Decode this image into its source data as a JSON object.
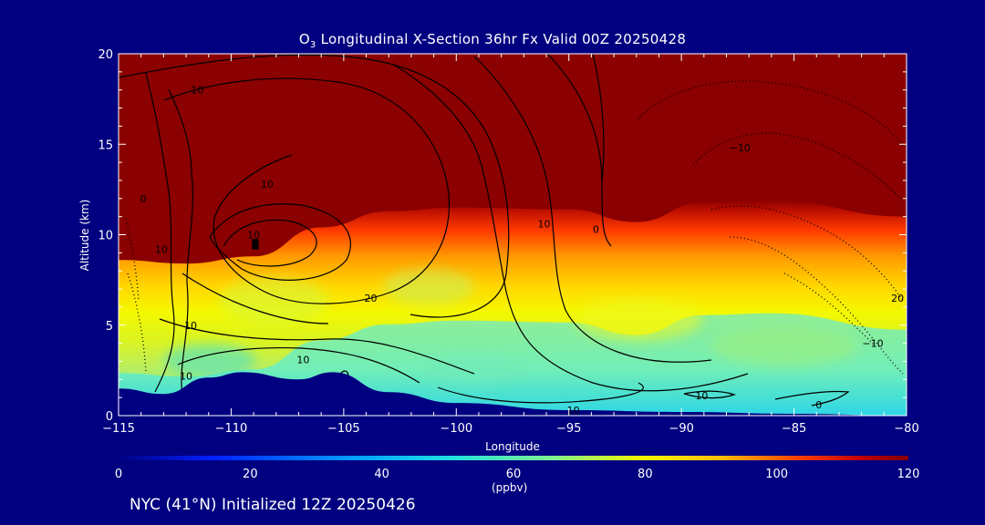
{
  "title": {
    "species": "O",
    "subscript": "3",
    "rest": " Longitudinal X-Section 36hr  Fx Valid 00Z 20250428"
  },
  "footer": "NYC (41°N) Initialized 12Z 20250426",
  "chart_data": {
    "type": "heatmap",
    "title": "O3 Longitudinal X-Section 36hr  Fx Valid 00Z 20250428",
    "xlabel": "Longitude",
    "ylabel": "Altitude (km)",
    "xlim": [
      -115,
      -80
    ],
    "ylim": [
      0,
      20
    ],
    "x_ticks": [
      -115,
      -110,
      -105,
      -100,
      -95,
      -90,
      -85,
      -80
    ],
    "x_tick_labels": [
      "−115",
      "−110",
      "−105",
      "−100",
      "−95",
      "−90",
      "−85",
      "−80"
    ],
    "y_ticks": [
      0,
      5,
      10,
      15,
      20
    ],
    "colorbar": {
      "min": 0,
      "max": 120,
      "ticks": [
        0,
        20,
        40,
        60,
        80,
        100,
        120
      ],
      "unit": "(ppbv)"
    },
    "tropopause_height_km": [
      {
        "lon": -115,
        "alt": 8.4
      },
      {
        "lon": -112,
        "alt": 8.2
      },
      {
        "lon": -109,
        "alt": 8.6
      },
      {
        "lon": -106,
        "alt": 10.2
      },
      {
        "lon": -103,
        "alt": 11.1
      },
      {
        "lon": -100,
        "alt": 11.3
      },
      {
        "lon": -95,
        "alt": 11.2
      },
      {
        "lon": -92,
        "alt": 10.5
      },
      {
        "lon": -89,
        "alt": 11.6
      },
      {
        "lon": -86,
        "alt": 11.7
      },
      {
        "lon": -80,
        "alt": 10.8
      }
    ],
    "terrain_height_km": [
      {
        "lon": -115,
        "alt": 1.5
      },
      {
        "lon": -113,
        "alt": 1.2
      },
      {
        "lon": -111,
        "alt": 2.1
      },
      {
        "lon": -109.5,
        "alt": 2.4
      },
      {
        "lon": -107,
        "alt": 2.0
      },
      {
        "lon": -105.5,
        "alt": 2.4
      },
      {
        "lon": -103,
        "alt": 1.3
      },
      {
        "lon": -100,
        "alt": 0.7
      },
      {
        "lon": -95,
        "alt": 0.3
      },
      {
        "lon": -90,
        "alt": 0.2
      },
      {
        "lon": -85,
        "alt": 0.1
      },
      {
        "lon": -80,
        "alt": 0.0
      }
    ],
    "contour_labels": [
      {
        "text": "10",
        "lon": -111.5,
        "alt": 18.0
      },
      {
        "text": "0",
        "lon": -113.9,
        "alt": 12.0
      },
      {
        "text": "10",
        "lon": -113.1,
        "alt": 9.2
      },
      {
        "text": "10",
        "lon": -108.4,
        "alt": 12.8
      },
      {
        "text": "10",
        "lon": -109.0,
        "alt": 10.0
      },
      {
        "text": "20",
        "lon": -103.8,
        "alt": 6.5
      },
      {
        "text": "10",
        "lon": -111.8,
        "alt": 5.0
      },
      {
        "text": "10",
        "lon": -112.0,
        "alt": 2.2
      },
      {
        "text": "10",
        "lon": -106.8,
        "alt": 3.1
      },
      {
        "text": "10",
        "lon": -96.1,
        "alt": 10.6
      },
      {
        "text": "0",
        "lon": -93.8,
        "alt": 10.3
      },
      {
        "text": "−10",
        "lon": -87.4,
        "alt": 14.8
      },
      {
        "text": "20",
        "lon": -80.4,
        "alt": 6.5
      },
      {
        "text": "−10",
        "lon": -81.5,
        "alt": 4.0
      },
      {
        "text": "10",
        "lon": -89.1,
        "alt": 1.1
      },
      {
        "text": "10",
        "lon": -94.8,
        "alt": 0.3
      },
      {
        "text": "0",
        "lon": -83.9,
        "alt": 0.6
      }
    ]
  }
}
